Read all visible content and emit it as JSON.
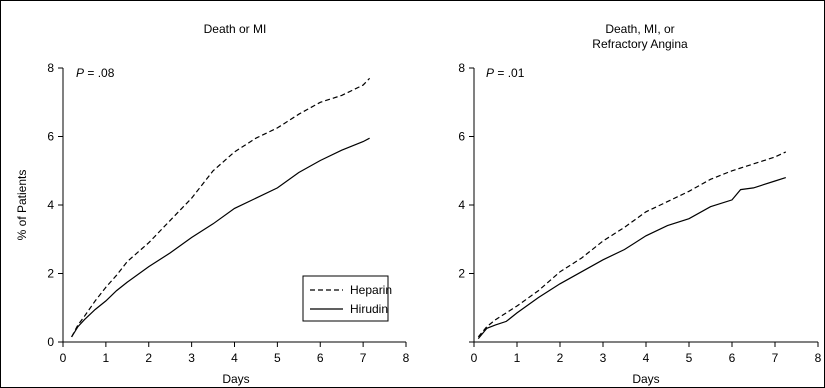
{
  "chart_data": [
    {
      "type": "line",
      "title": [
        "Death or MI"
      ],
      "annotation": {
        "prefix": "P",
        "value": " = .08"
      },
      "xlabel": "Days",
      "ylabel": "% of Patients",
      "xlim": [
        0,
        8
      ],
      "ylim": [
        0,
        8
      ],
      "xticks": [
        0,
        1,
        2,
        3,
        4,
        5,
        6,
        7,
        8
      ],
      "yticks": [
        0,
        2,
        4,
        6,
        8
      ],
      "legend": "bottom-right",
      "series": [
        {
          "name": "Heparin",
          "style": "dashed",
          "x": [
            0.2,
            0.35,
            0.5,
            0.75,
            1.0,
            1.25,
            1.5,
            2.0,
            2.5,
            3.0,
            3.5,
            4.0,
            4.5,
            5.0,
            5.5,
            6.0,
            6.5,
            7.0,
            7.15
          ],
          "y": [
            0.15,
            0.5,
            0.75,
            1.2,
            1.6,
            1.95,
            2.35,
            2.9,
            3.55,
            4.2,
            5.0,
            5.55,
            5.95,
            6.25,
            6.65,
            7.0,
            7.2,
            7.5,
            7.7
          ]
        },
        {
          "name": "Hirudin",
          "style": "solid",
          "x": [
            0.2,
            0.35,
            0.5,
            0.75,
            1.0,
            1.25,
            1.5,
            2.0,
            2.5,
            3.0,
            3.5,
            4.0,
            4.5,
            5.0,
            5.5,
            6.0,
            6.5,
            7.0,
            7.15
          ],
          "y": [
            0.15,
            0.45,
            0.65,
            0.95,
            1.2,
            1.5,
            1.75,
            2.2,
            2.6,
            3.05,
            3.45,
            3.9,
            4.2,
            4.5,
            4.95,
            5.3,
            5.6,
            5.85,
            5.95
          ]
        }
      ]
    },
    {
      "type": "line",
      "title": [
        "Death, MI, or",
        "Refractory Angina"
      ],
      "annotation": {
        "prefix": "P",
        "value": " = .01"
      },
      "xlabel": "Days",
      "ylabel": "",
      "xlim": [
        0,
        8
      ],
      "ylim": [
        0,
        8
      ],
      "xticks": [
        0,
        1,
        2,
        3,
        4,
        5,
        6,
        7,
        8
      ],
      "yticks": [
        0,
        2,
        4,
        6,
        8
      ],
      "legend": "none",
      "series": [
        {
          "name": "Heparin",
          "style": "dashed",
          "x": [
            0.1,
            0.3,
            0.5,
            1.0,
            1.5,
            2.0,
            2.5,
            3.0,
            3.5,
            4.0,
            4.5,
            5.0,
            5.5,
            6.0,
            6.5,
            7.0,
            7.25
          ],
          "y": [
            0.15,
            0.45,
            0.65,
            1.05,
            1.5,
            2.05,
            2.45,
            2.95,
            3.35,
            3.8,
            4.1,
            4.4,
            4.75,
            5.0,
            5.2,
            5.4,
            5.55
          ]
        },
        {
          "name": "Hirudin",
          "style": "solid",
          "x": [
            0.1,
            0.3,
            0.5,
            0.75,
            1.0,
            1.5,
            2.0,
            2.5,
            3.0,
            3.5,
            4.0,
            4.5,
            5.0,
            5.5,
            6.0,
            6.2,
            6.5,
            7.0,
            7.25
          ],
          "y": [
            0.1,
            0.4,
            0.5,
            0.6,
            0.85,
            1.3,
            1.7,
            2.05,
            2.4,
            2.7,
            3.1,
            3.4,
            3.6,
            3.95,
            4.15,
            4.45,
            4.5,
            4.7,
            4.8
          ]
        }
      ]
    }
  ]
}
